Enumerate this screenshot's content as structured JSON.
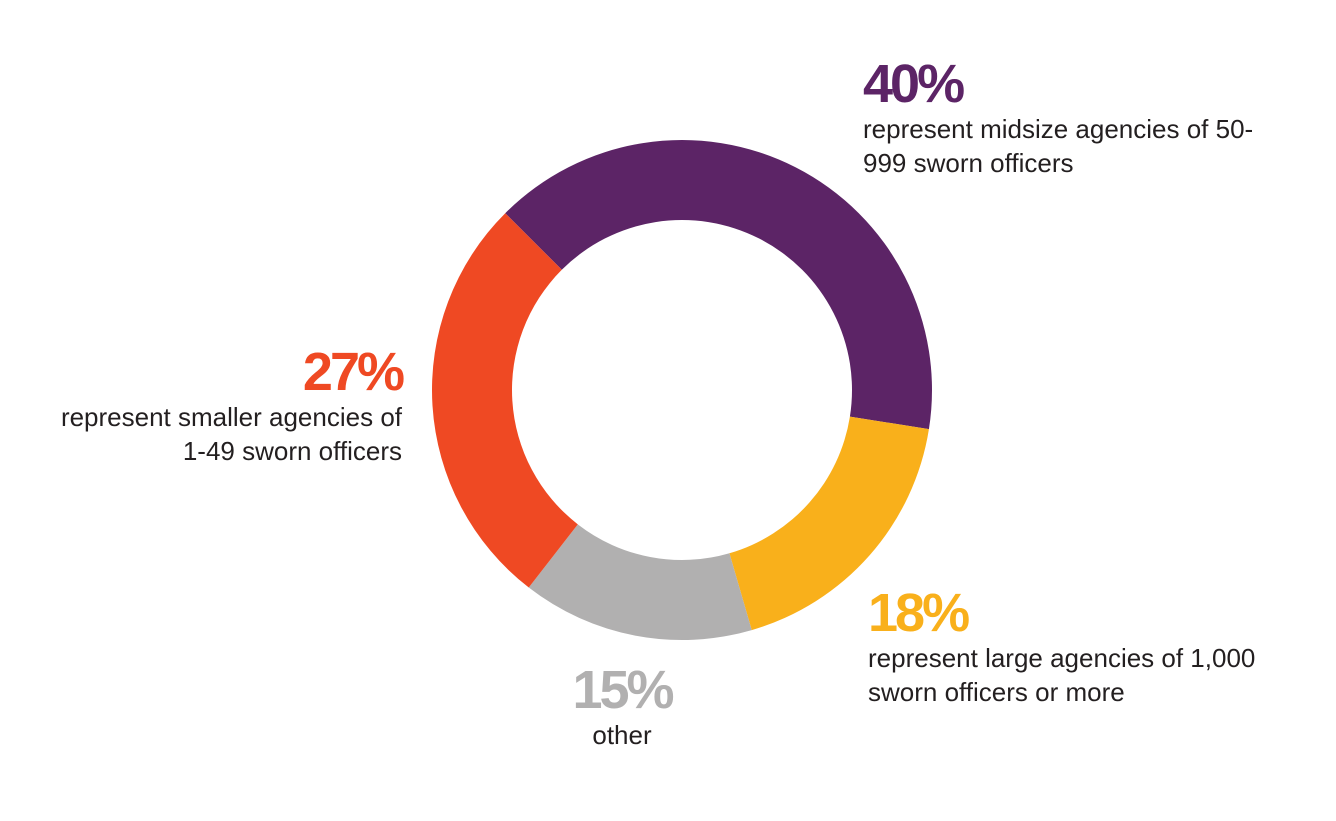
{
  "chart_data": {
    "type": "donut",
    "categories": [
      "represent midsize agencies of 50-999 sworn officers",
      "represent large agencies of 1,000 sworn officers or more",
      "other",
      "represent smaller agencies of 1-49 sworn officers"
    ],
    "values": [
      40,
      18,
      15,
      27
    ],
    "value_labels": [
      "40%",
      "18%",
      "15%",
      "27%"
    ],
    "colors": [
      "#5c2466",
      "#f9b01b",
      "#b1b0b0",
      "#ef4923"
    ]
  }
}
